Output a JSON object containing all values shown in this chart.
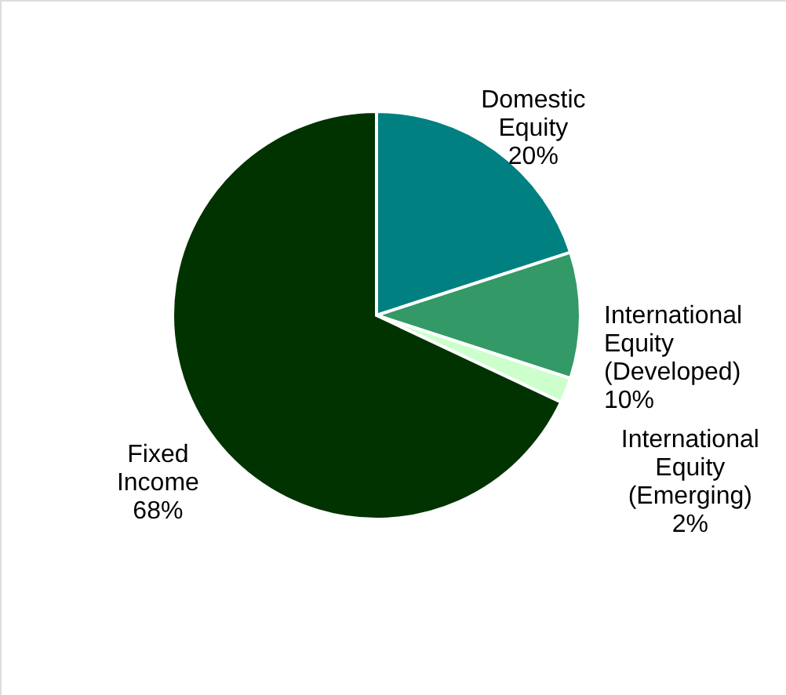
{
  "chart_data": {
    "type": "pie",
    "categories": [
      "Domestic Equity",
      "International Equity (Developed)",
      "International Equity (Emerging)",
      "Fixed Income"
    ],
    "values": [
      20,
      10,
      2,
      68
    ],
    "value_labels": [
      "20%",
      "10%",
      "2%",
      "68%"
    ],
    "colors": [
      "#008080",
      "#339966",
      "#ccffcc",
      "#003300"
    ],
    "legend": false
  }
}
